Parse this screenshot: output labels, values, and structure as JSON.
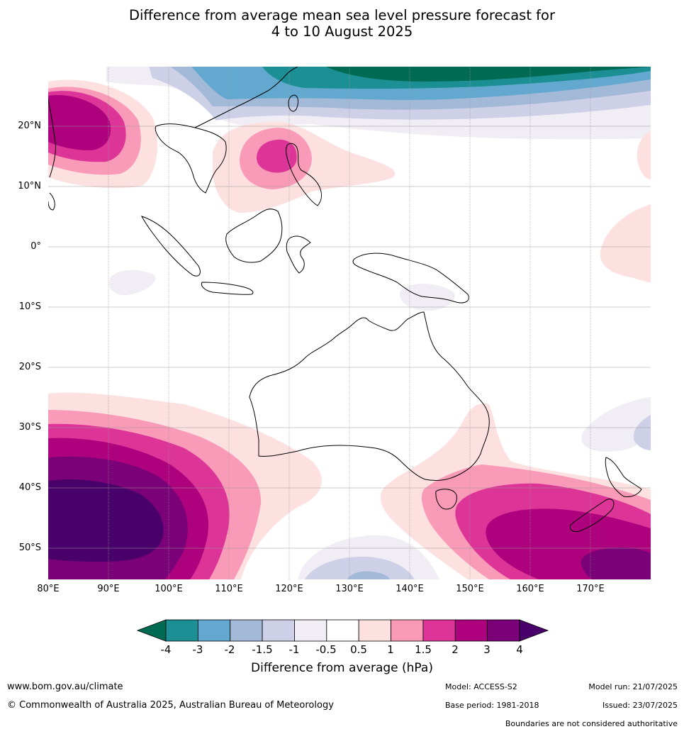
{
  "title_line1": "Difference from average mean sea level pressure forecast for",
  "title_line2": "4 to 10 August 2025",
  "lat_labels": [
    "20°N",
    "10°N",
    "0°",
    "10°S",
    "20°S",
    "30°S",
    "40°S",
    "50°S"
  ],
  "lon_labels": [
    "80°E",
    "90°E",
    "100°E",
    "110°E",
    "120°E",
    "130°E",
    "140°E",
    "150°E",
    "160°E",
    "170°E"
  ],
  "colorbar": {
    "ticks": [
      "-4",
      "-3",
      "-2",
      "-1.5",
      "-1",
      "-0.5",
      "0.5",
      "1",
      "1.5",
      "2",
      "3",
      "4"
    ],
    "colors": [
      "#006b52",
      "#1c8f94",
      "#62a8cf",
      "#a3b9d8",
      "#cdd0e6",
      "#f0edf5",
      "#ffffff",
      "#fde0e0",
      "#f99ab8",
      "#dd3497",
      "#ae017e",
      "#7a0177",
      "#49006a"
    ],
    "label": "Difference from average (hPa)"
  },
  "footer": {
    "url": "www.bom.gov.au/climate",
    "copyright": "© Commonwealth of Australia 2025, Australian Bureau of Meteorology",
    "model": "Model: ACCESS-S2",
    "base_period": "Base period: 1981-2018",
    "model_run": "Model run: 21/07/2025",
    "issued": "Issued: 23/07/2025",
    "disclaimer": "Boundaries are not considered authoritative"
  }
}
